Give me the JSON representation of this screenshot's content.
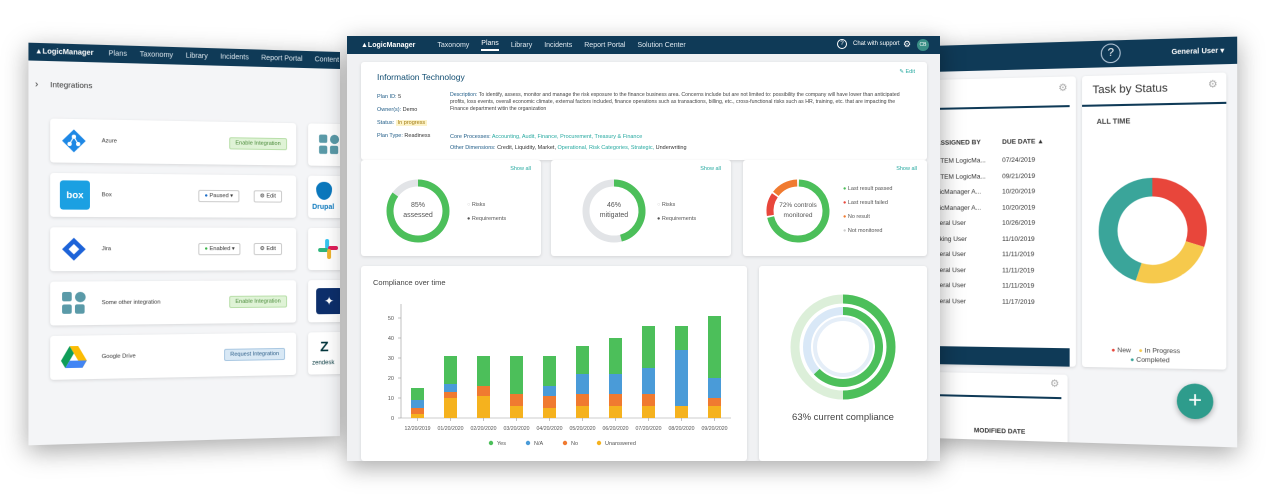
{
  "left_window": {
    "nav": {
      "logo": "▲LogicManager",
      "items": [
        "Plans",
        "Taxonomy",
        "Library",
        "Incidents",
        "Report Portal",
        "Content Packages"
      ]
    },
    "section_title": "Integrations",
    "integrations": [
      {
        "name": "Azure",
        "action": "Enable Integration"
      },
      {
        "name": "Box",
        "status": "Paused",
        "action": "Edit"
      },
      {
        "name": "Jira",
        "status": "Enabled",
        "action": "Edit"
      },
      {
        "name": "Some other integration",
        "action": "Enable Integration"
      },
      {
        "name": "Google Drive",
        "action": "Request Integration"
      }
    ],
    "right_column_labels": {
      "drupal": "Drupal",
      "zendesk": "zendesk",
      "box_logo": "box"
    }
  },
  "center_window": {
    "nav": {
      "logo": "▲LogicManager",
      "items": [
        "Taxonomy",
        "Plans",
        "Library",
        "Incidents",
        "Report Portal",
        "Solution Center"
      ],
      "active": "Plans",
      "chat": "Chat with support",
      "avatar": "CB"
    },
    "plan": {
      "title": "Information Technology",
      "edit": "Edit",
      "plan_id_label": "Plan ID:",
      "plan_id": "5",
      "owner_label": "Owner(s):",
      "owner": "Demo",
      "status_label": "Status:",
      "status": "In progress",
      "plan_type_label": "Plan Type:",
      "plan_type": "Readiness",
      "description_label": "Description:",
      "description": "To identify, assess, monitor and manage the risk exposure to the finance business area. Concerns include but are not limited to: possibility the company will have lower than anticipated profits, loss events, overall economic climate, external factors included, finance operations such as transactions, billing, etc., cross-functional risks such as HR, training, etc. that are impacting the Finance department witin the organization",
      "core_label": "Core Processes:",
      "core_processes": "Accounting, Audit, Finance, Procurement, Treasury & Finance",
      "other_label": "Other Dimensions:",
      "other_dimensions_plain": "Credit, Liquidity, Market,",
      "other_dimensions_links": "Operational, Risk Categories, Strategic,",
      "other_dimensions_tail": "Underwriting"
    },
    "donuts": [
      {
        "show_all": "Show all",
        "pct": "85%",
        "label": "assessed",
        "value": 0.85,
        "legend": [
          "Risks",
          "Requirements"
        ]
      },
      {
        "show_all": "Show all",
        "pct": "46%",
        "label": "mitigated",
        "value": 0.46,
        "legend": [
          "Risks",
          "Requirements"
        ]
      },
      {
        "show_all": "Show all",
        "pct": "72% controls",
        "label": "monitored",
        "value": 0.72,
        "legend": [
          "Last result passed",
          "Last result failed",
          "No result",
          "Not monitored"
        ]
      }
    ],
    "compliance": {
      "summary": "63% current compliance",
      "value": 0.63
    },
    "colors": {
      "yes": "#4cbf5a",
      "na": "#4a9bd8",
      "no": "#f07a30",
      "unanswered": "#f5b21e"
    }
  },
  "chart_data": {
    "type": "bar",
    "title": "Compliance over time",
    "categories": [
      "12/20/2019",
      "01/20/2020",
      "02/20/2020",
      "03/20/2020",
      "04/20/2020",
      "05/20/2020",
      "06/20/2020",
      "07/20/2020",
      "08/20/2020",
      "09/20/2020"
    ],
    "series": [
      {
        "name": "Unanswered",
        "values": [
          2,
          10,
          11,
          6,
          5,
          6,
          6,
          6,
          6,
          6
        ]
      },
      {
        "name": "No",
        "values": [
          3,
          3,
          5,
          6,
          6,
          6,
          6,
          6,
          0,
          4
        ]
      },
      {
        "name": "N/A",
        "values": [
          4,
          4,
          0,
          0,
          5,
          10,
          10,
          13,
          28,
          10
        ]
      },
      {
        "name": "Yes",
        "values": [
          6,
          14,
          15,
          19,
          15,
          14,
          18,
          21,
          12,
          31
        ]
      }
    ],
    "yticks": [
      0,
      10,
      20,
      30,
      40,
      50
    ],
    "ylim": [
      0,
      55
    ],
    "stacked": true,
    "legend": [
      "Yes",
      "N/A",
      "No",
      "Unanswered"
    ],
    "legend_position": "bottom"
  },
  "right_window": {
    "user_menu": "General User",
    "table": {
      "headers": [
        "ASSIGNED BY",
        "DUE DATE"
      ],
      "rows": [
        [
          "STEM LogicMa...",
          "07/24/2019"
        ],
        [
          "STEM LogicMa...",
          "09/21/2019"
        ],
        [
          "gicManager A...",
          "10/20/2019"
        ],
        [
          "gicManager A...",
          "10/20/2019"
        ],
        [
          "neral User",
          "10/26/2019"
        ],
        [
          "nking User",
          "11/10/2019"
        ],
        [
          "neral User",
          "11/11/2019"
        ],
        [
          "neral User",
          "11/11/2019"
        ],
        [
          "neral User",
          "11/11/2019"
        ],
        [
          "neral User",
          "11/17/2019"
        ]
      ],
      "footer_header": "MODIFIED DATE"
    },
    "task_status": {
      "title": "Task by Status",
      "filter": "ALL TIME",
      "legend": [
        "New",
        "In Progress",
        "Completed"
      ],
      "values": [
        0.3,
        0.25,
        0.45
      ],
      "colors": [
        "#e8463b",
        "#f6c94c",
        "#3aa59a"
      ]
    },
    "fab": "+"
  }
}
